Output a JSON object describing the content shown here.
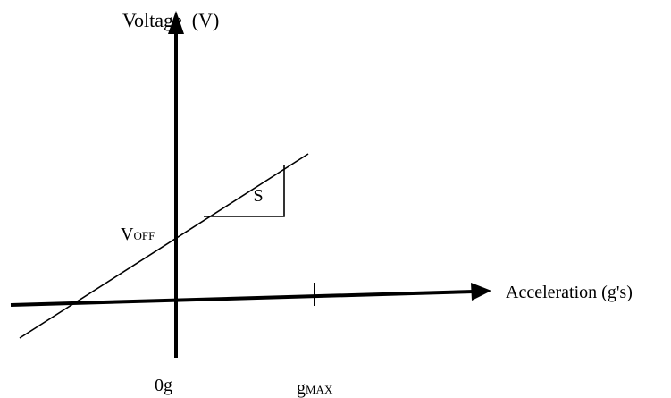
{
  "y_axis": {
    "label": "Voltage  (V)"
  },
  "x_axis": {
    "label": "Acceleration (g's)",
    "origin_tick": "0g",
    "max_tick": {
      "base": "g",
      "sub": "MAX"
    }
  },
  "offset_label": {
    "base": "V",
    "sub": "OFF"
  },
  "slope_label": "S",
  "colors": {
    "ink": "#000000",
    "background": "#ffffff"
  }
}
